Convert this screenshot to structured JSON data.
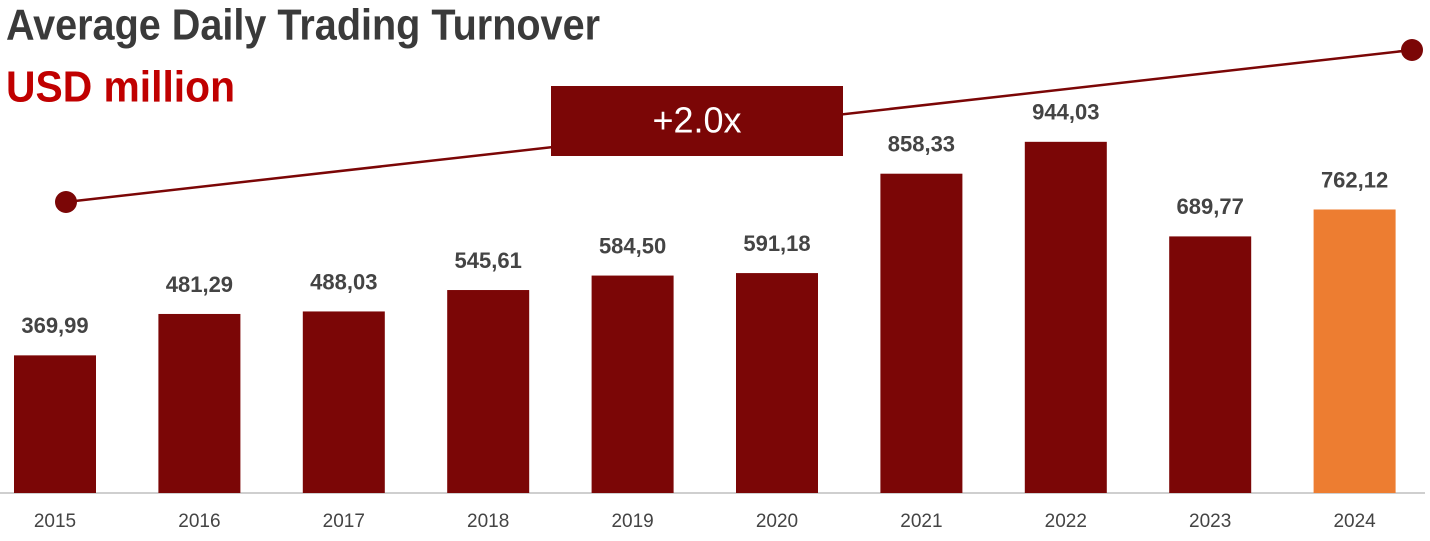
{
  "chart_data": {
    "type": "bar",
    "title": "Average Daily Trading Turnover",
    "subtitle": "USD million",
    "annotation": "+2.0x",
    "categories": [
      "2015",
      "2016",
      "2017",
      "2018",
      "2019",
      "2020",
      "2021",
      "2022",
      "2023",
      "2024"
    ],
    "values": [
      369.99,
      481.29,
      488.03,
      545.61,
      584.5,
      591.18,
      858.33,
      944.03,
      689.77,
      762.12
    ],
    "value_labels": [
      "369,99",
      "481,29",
      "488,03",
      "545,61",
      "584,50",
      "591,18",
      "858,33",
      "944,03",
      "689,77",
      "762,12"
    ],
    "colors": [
      "#7b0606",
      "#7b0606",
      "#7b0606",
      "#7b0606",
      "#7b0606",
      "#7b0606",
      "#7b0606",
      "#7b0606",
      "#7b0606",
      "#ed7d31"
    ]
  }
}
